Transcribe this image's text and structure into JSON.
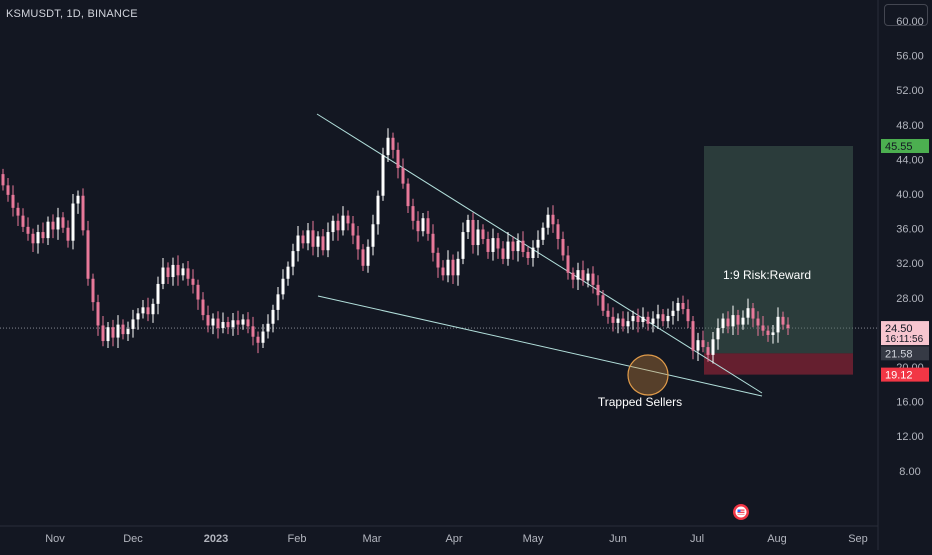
{
  "header": {
    "symbol_line": "KSMUSDT, 1D, BINANCE"
  },
  "chart_data": {
    "type": "candlestick",
    "title": "KSMUSDT, 1D, BINANCE",
    "ylim": [
      4,
      62
    ],
    "y_ticks": [
      "60.00",
      "56.00",
      "52.00",
      "48.00",
      "44.00",
      "40.00",
      "36.00",
      "32.00",
      "28.00",
      "20.00",
      "16.00",
      "12.00",
      "8.00"
    ],
    "x_ticks": [
      "Nov",
      "Dec",
      "2023",
      "Feb",
      "Mar",
      "Apr",
      "May",
      "Jun",
      "Jul",
      "Aug",
      "Sep"
    ],
    "price_labels": {
      "target": {
        "text": "45.55",
        "value": 45.55,
        "color": "#4caf50"
      },
      "last_price": {
        "text": "24.50",
        "value": 24.5,
        "countdown": "16:11:56",
        "color": "#f7c5cf"
      },
      "entry": {
        "text": "21.58",
        "value": 21.58,
        "color": "#363a45"
      },
      "stop": {
        "text": "19.12",
        "value": 19.12,
        "color": "#f23645"
      }
    },
    "annotations": {
      "risk_reward": "1:9 Risk:Reward",
      "trapped": "Trapped Sellers"
    },
    "pattern": "falling wedge",
    "colors": {
      "up": "#ffffff",
      "down": "#e8799a",
      "trendline": "#b2dfdb"
    },
    "candles": [
      [
        42.3,
        41.0
      ],
      [
        41.0,
        39.9
      ],
      [
        39.9,
        38.4
      ],
      [
        38.4,
        37.5
      ],
      [
        37.5,
        36.2
      ],
      [
        36.2,
        35.4
      ],
      [
        35.4,
        34.3
      ],
      [
        34.3,
        35.6
      ],
      [
        35.6,
        34.9
      ],
      [
        34.9,
        36.8
      ],
      [
        36.8,
        35.9
      ],
      [
        35.9,
        37.3
      ],
      [
        37.3,
        36.1
      ],
      [
        36.1,
        34.6
      ],
      [
        34.6,
        38.9
      ],
      [
        38.9,
        39.8
      ],
      [
        39.8,
        35.8
      ],
      [
        35.8,
        30.2
      ],
      [
        30.2,
        27.5
      ],
      [
        27.5,
        24.8
      ],
      [
        24.8,
        23.0
      ],
      [
        23.0,
        24.6
      ],
      [
        24.6,
        23.4
      ],
      [
        23.4,
        24.9
      ],
      [
        24.9,
        23.8
      ],
      [
        23.8,
        24.4
      ],
      [
        24.4,
        25.5
      ],
      [
        25.5,
        26.2
      ],
      [
        26.2,
        26.9
      ],
      [
        26.9,
        26.1
      ],
      [
        26.1,
        27.3
      ],
      [
        27.3,
        29.6
      ],
      [
        29.6,
        31.5
      ],
      [
        31.5,
        30.4
      ],
      [
        30.4,
        31.8
      ],
      [
        31.8,
        30.6
      ],
      [
        30.6,
        31.4
      ],
      [
        31.4,
        30.2
      ],
      [
        30.2,
        29.5
      ],
      [
        29.5,
        27.8
      ],
      [
        27.8,
        26.0
      ],
      [
        26.0,
        24.8
      ],
      [
        24.8,
        25.6
      ],
      [
        25.6,
        24.5
      ],
      [
        24.5,
        25.2
      ],
      [
        25.2,
        24.6
      ],
      [
        24.6,
        25.4
      ],
      [
        25.4,
        24.9
      ],
      [
        24.9,
        25.5
      ],
      [
        25.5,
        24.7
      ],
      [
        24.7,
        23.5
      ],
      [
        23.5,
        22.8
      ],
      [
        22.8,
        24.1
      ],
      [
        24.1,
        25.0
      ],
      [
        25.0,
        26.6
      ],
      [
        26.6,
        28.4
      ],
      [
        28.4,
        30.2
      ],
      [
        30.2,
        31.6
      ],
      [
        31.6,
        33.4
      ],
      [
        33.4,
        35.2
      ],
      [
        35.2,
        34.3
      ],
      [
        34.3,
        35.8
      ],
      [
        35.8,
        33.9
      ],
      [
        33.9,
        35.1
      ],
      [
        35.1,
        33.5
      ],
      [
        33.5,
        35.6
      ],
      [
        35.6,
        36.9
      ],
      [
        36.9,
        35.8
      ],
      [
        35.8,
        37.5
      ],
      [
        37.5,
        36.6
      ],
      [
        36.6,
        35.2
      ],
      [
        35.2,
        33.6
      ],
      [
        33.6,
        31.7
      ],
      [
        31.7,
        33.9
      ],
      [
        33.9,
        36.5
      ],
      [
        36.5,
        39.8
      ],
      [
        39.8,
        44.5
      ],
      [
        44.5,
        46.5
      ],
      [
        46.5,
        45.1
      ],
      [
        45.1,
        43.0
      ],
      [
        43.0,
        41.2
      ],
      [
        41.2,
        38.6
      ],
      [
        38.6,
        36.9
      ],
      [
        36.9,
        35.7
      ],
      [
        35.7,
        37.2
      ],
      [
        37.2,
        35.4
      ],
      [
        35.4,
        33.2
      ],
      [
        33.2,
        31.5
      ],
      [
        31.5,
        30.6
      ],
      [
        30.6,
        32.4
      ],
      [
        32.4,
        30.6
      ],
      [
        30.6,
        32.5
      ],
      [
        32.5,
        35.6
      ],
      [
        35.6,
        37.0
      ],
      [
        37.0,
        34.1
      ],
      [
        34.1,
        35.9
      ],
      [
        35.9,
        34.8
      ],
      [
        34.8,
        33.3
      ],
      [
        33.3,
        34.9
      ],
      [
        34.9,
        33.7
      ],
      [
        33.7,
        32.5
      ],
      [
        32.5,
        34.5
      ],
      [
        34.5,
        33.4
      ],
      [
        33.4,
        34.6
      ],
      [
        34.6,
        33.3
      ],
      [
        33.3,
        32.6
      ],
      [
        32.6,
        33.8
      ],
      [
        33.8,
        34.7
      ],
      [
        34.7,
        36.1
      ],
      [
        36.1,
        37.6
      ],
      [
        37.6,
        36.5
      ],
      [
        36.5,
        34.8
      ],
      [
        34.8,
        32.9
      ],
      [
        32.9,
        30.9
      ],
      [
        30.9,
        30.1
      ],
      [
        30.1,
        31.2
      ],
      [
        31.2,
        30.0
      ],
      [
        30.0,
        30.8
      ],
      [
        30.8,
        29.5
      ],
      [
        29.5,
        28.3
      ],
      [
        28.3,
        26.5
      ],
      [
        26.5,
        25.8
      ],
      [
        25.8,
        25.1
      ],
      [
        25.1,
        25.6
      ],
      [
        25.6,
        24.7
      ],
      [
        24.7,
        25.3
      ],
      [
        25.3,
        25.9
      ],
      [
        25.9,
        25.2
      ],
      [
        25.2,
        25.8
      ],
      [
        25.8,
        25.0
      ],
      [
        25.0,
        25.6
      ],
      [
        25.6,
        26.1
      ],
      [
        26.1,
        25.3
      ],
      [
        25.3,
        25.9
      ],
      [
        25.9,
        26.5
      ],
      [
        26.5,
        27.4
      ],
      [
        27.4,
        26.7
      ],
      [
        26.7,
        25.3
      ],
      [
        25.3,
        21.9
      ],
      [
        21.9,
        23.1
      ],
      [
        23.1,
        22.3
      ],
      [
        22.3,
        21.4
      ],
      [
        21.4,
        23.2
      ],
      [
        23.2,
        24.5
      ],
      [
        24.5,
        25.6
      ],
      [
        25.6,
        24.7
      ],
      [
        24.7,
        26.0
      ],
      [
        26.0,
        24.9
      ],
      [
        24.9,
        25.7
      ],
      [
        25.7,
        26.8
      ],
      [
        26.8,
        25.6
      ],
      [
        25.6,
        24.8
      ],
      [
        24.8,
        24.2
      ],
      [
        24.2,
        23.7
      ],
      [
        23.7,
        24.0
      ],
      [
        24.0,
        25.8
      ],
      [
        25.8,
        24.9
      ],
      [
        24.9,
        24.5
      ]
    ]
  }
}
